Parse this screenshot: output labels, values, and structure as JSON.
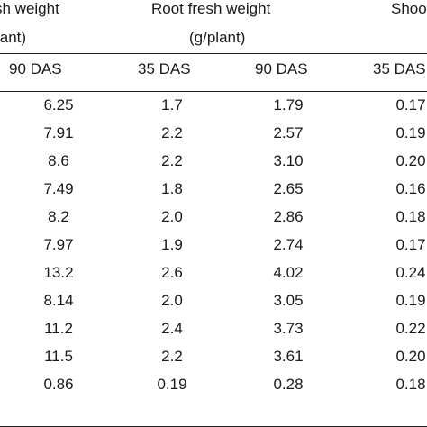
{
  "headers": {
    "shoot_fresh_line1": "sh weight",
    "shoot_fresh_line2": "lant)",
    "root_fresh_line1": "Root fresh weight",
    "root_fresh_line2": "(g/plant)",
    "shoot_dry_line1": "Shoo"
  },
  "subheaders": [
    "90 DAS",
    "35 DAS",
    "90 DAS",
    "35 DAS"
  ],
  "rows": [
    [
      "6.25",
      "1.7",
      "1.79",
      "0.17"
    ],
    [
      "7.91",
      "2.2",
      "2.57",
      "0.19"
    ],
    [
      "8.6",
      "2.2",
      "3.10",
      "0.20"
    ],
    [
      "7.49",
      "1.8",
      "2.65",
      "0.16"
    ],
    [
      "8.2",
      "2.0",
      "2.86",
      "0.18"
    ],
    [
      "7.97",
      "1.9",
      "2.74",
      "0.17"
    ],
    [
      "13.2",
      "2.6",
      "4.02",
      "0.24"
    ],
    [
      "8.14",
      "2.0",
      "3.05",
      "0.19"
    ],
    [
      "11.2",
      "2.4",
      "3.73",
      "0.22"
    ],
    [
      "11.5",
      "2.2",
      "3.61",
      "0.20"
    ],
    [
      "0.86",
      "0.19",
      "0.28",
      "0.18"
    ]
  ]
}
